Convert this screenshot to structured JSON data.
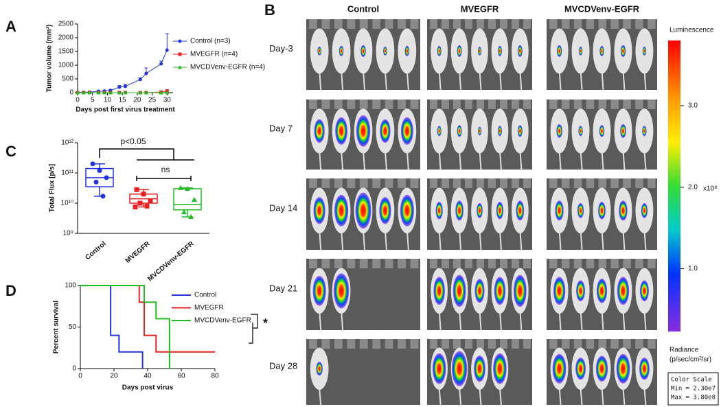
{
  "chart_data": [
    {
      "type": "line",
      "panel_label": "A",
      "xlabel": "Days post first virus treatment",
      "ylabel": "Tumor volume (mm³)",
      "xlim": [
        0,
        32
      ],
      "xticks": [
        0,
        5,
        10,
        15,
        20,
        25,
        30
      ],
      "ylim": [
        0,
        2500
      ],
      "yticks": [
        0,
        500,
        1000,
        1500,
        2000,
        2500
      ],
      "series": [
        {
          "name": "Control (n=3)",
          "color": "#2233dd",
          "marker": "circle",
          "x": [
            0,
            2,
            4,
            7,
            9,
            11,
            14,
            16,
            21,
            23,
            28,
            30
          ],
          "values": [
            10,
            15,
            20,
            50,
            60,
            80,
            200,
            230,
            480,
            700,
            1050,
            1550
          ],
          "errors": [
            5,
            5,
            10,
            20,
            20,
            30,
            60,
            70,
            60,
            200,
            100,
            600
          ]
        },
        {
          "name": "MVEGFR (n=4)",
          "color": "#e8201f",
          "marker": "square",
          "x": [
            0,
            2,
            4,
            7,
            9,
            11,
            14,
            16,
            21,
            23,
            28,
            30
          ],
          "values": [
            0,
            0,
            0,
            0,
            0,
            0,
            0,
            0,
            0,
            0,
            20,
            60
          ]
        },
        {
          "name": "MVCDVenv-EGFR (n=4)",
          "color": "#22bb22",
          "marker": "triangle",
          "x": [
            0,
            2,
            4,
            7,
            9,
            11,
            14,
            16,
            21,
            23,
            28,
            30
          ],
          "values": [
            0,
            0,
            0,
            0,
            0,
            0,
            0,
            0,
            0,
            0,
            0,
            5
          ]
        }
      ]
    },
    {
      "type": "box",
      "panel_label": "C",
      "ylabel": "Total Flux [p/s]",
      "log_scale": true,
      "categories": [
        "Control",
        "MVEGFR",
        "MVCDVenv-EGFR"
      ],
      "ylim": [
        1000000000,
        1000000000000
      ],
      "yticks": [
        {
          "value": 1000000000,
          "label": "10⁹"
        },
        {
          "value": 10000000000,
          "label": "10¹⁰"
        },
        {
          "value": 100000000000,
          "label": "10¹¹"
        },
        {
          "value": 1000000000000,
          "label": "10¹²"
        }
      ],
      "annotations": [
        "p<0.05",
        "ns"
      ],
      "boxes": [
        {
          "color": "#2233dd",
          "min": 17000000000,
          "q1": 35000000000,
          "median": 70000000000,
          "q3": 140000000000,
          "max": 200000000000,
          "points": [
            200000000000,
            120000000000,
            70000000000,
            50000000000,
            17000000000
          ]
        },
        {
          "color": "#e8201f",
          "min": 7500000000,
          "q1": 10000000000,
          "median": 14000000000,
          "q3": 20000000000,
          "max": 28000000000,
          "points": [
            28000000000,
            20000000000,
            12000000000,
            10000000000,
            8000000000,
            7500000000
          ]
        },
        {
          "color": "#22bb22",
          "min": 3500000000,
          "q1": 6000000000,
          "median": 9000000000,
          "q3": 30000000000,
          "max": 32000000000,
          "points": [
            32000000000,
            30000000000,
            13000000000,
            5000000000,
            3500000000
          ]
        }
      ]
    },
    {
      "type": "line",
      "panel_label": "D",
      "xlabel": "Days post virus",
      "ylabel": "Percent survival",
      "xlim": [
        0,
        80
      ],
      "xticks": [
        0,
        20,
        40,
        60,
        80
      ],
      "ylim": [
        0,
        100
      ],
      "yticks": [
        0,
        50,
        100
      ],
      "annotations": [
        "*"
      ],
      "series": [
        {
          "name": "Control",
          "color": "#2233dd",
          "x": [
            0,
            18,
            18,
            23,
            23,
            37,
            37
          ],
          "values": [
            100,
            100,
            40,
            40,
            20,
            20,
            0
          ]
        },
        {
          "name": "MVEGFR",
          "color": "#e8201f",
          "x": [
            0,
            35,
            35,
            38,
            38,
            45,
            45,
            80
          ],
          "values": [
            100,
            100,
            80,
            80,
            40,
            40,
            20,
            20
          ]
        },
        {
          "name": "MVCDVenv-EGFR",
          "color": "#22bb22",
          "x": [
            0,
            38,
            38,
            45,
            45,
            53,
            53
          ],
          "values": [
            100,
            100,
            80,
            80,
            60,
            60,
            0
          ]
        }
      ]
    }
  ],
  "imaging": {
    "panel_label": "B",
    "columns": [
      "Control",
      "MVEGFR",
      "MVCDVenv-EGFR"
    ],
    "rows": [
      "Day-3",
      "Day 7",
      "Day 14",
      "Day 21",
      "Day 28"
    ],
    "colorbar": {
      "title": "Luminescence",
      "lim": [
        0.23,
        3.8
      ],
      "ticks": [
        {
          "value": 1,
          "label": "1.0"
        },
        {
          "value": 2,
          "label": "2.0"
        },
        {
          "value": 3,
          "label": "3.0"
        }
      ],
      "unit": "x10⁸",
      "radiance": [
        "Radiance",
        "(p/sec/cm²/sr)"
      ],
      "scale": [
        "Color Scale",
        "Min = 2.30e7",
        "Max = 3.80e8"
      ]
    }
  }
}
